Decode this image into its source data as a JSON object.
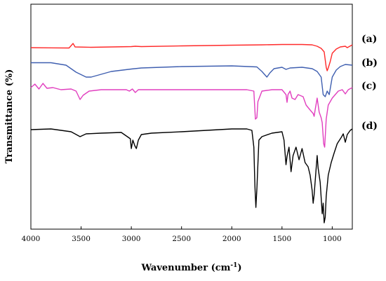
{
  "chart_data": {
    "type": "line",
    "title": "",
    "xlabel": "Wavenumber (cm",
    "xlabel_superscript": "-1",
    "xlabel_suffix": ")",
    "ylabel": "Transmittance (%)",
    "xlim": [
      4000,
      800
    ],
    "x_reversed": true,
    "x_ticks": [
      4000,
      3500,
      3000,
      2500,
      2000,
      1500,
      1000
    ],
    "y_ticks": "none",
    "grid": false,
    "legend": "right-side labels",
    "series": [
      {
        "name": "(a)",
        "color": "#ff2a2a",
        "points": [
          [
            4000,
            68
          ],
          [
            3800,
            68.3
          ],
          [
            3620,
            68.5
          ],
          [
            3580,
            62
          ],
          [
            3560,
            67
          ],
          [
            3400,
            67.5
          ],
          [
            3000,
            66.5
          ],
          [
            2960,
            66
          ],
          [
            2900,
            66.5
          ],
          [
            2500,
            65.5
          ],
          [
            2000,
            64.5
          ],
          [
            1700,
            64
          ],
          [
            1500,
            63.5
          ],
          [
            1300,
            63.5
          ],
          [
            1200,
            64
          ],
          [
            1150,
            66
          ],
          [
            1110,
            69
          ],
          [
            1080,
            74
          ],
          [
            1060,
            96
          ],
          [
            1050,
            101
          ],
          [
            1040,
            97
          ],
          [
            1020,
            88
          ],
          [
            1000,
            76
          ],
          [
            960,
            70
          ],
          [
            920,
            67
          ],
          [
            870,
            66
          ],
          [
            850,
            68
          ],
          [
            800,
            64
          ]
        ]
      },
      {
        "name": "(b)",
        "color": "#3f5fb0",
        "points": [
          [
            4000,
            89.5
          ],
          [
            3800,
            89.5
          ],
          [
            3650,
            93
          ],
          [
            3550,
            103
          ],
          [
            3450,
            110
          ],
          [
            3400,
            110
          ],
          [
            3300,
            106
          ],
          [
            3200,
            102
          ],
          [
            3000,
            98.5
          ],
          [
            2900,
            97
          ],
          [
            2500,
            95
          ],
          [
            2000,
            94
          ],
          [
            1750,
            95.5
          ],
          [
            1700,
            102
          ],
          [
            1650,
            110
          ],
          [
            1620,
            104
          ],
          [
            1580,
            98
          ],
          [
            1500,
            96
          ],
          [
            1460,
            99
          ],
          [
            1420,
            97
          ],
          [
            1300,
            96
          ],
          [
            1200,
            98
          ],
          [
            1150,
            102
          ],
          [
            1110,
            110
          ],
          [
            1090,
            135
          ],
          [
            1070,
            138
          ],
          [
            1050,
            130
          ],
          [
            1030,
            135
          ],
          [
            1000,
            110
          ],
          [
            960,
            100
          ],
          [
            920,
            95
          ],
          [
            870,
            92
          ],
          [
            800,
            93
          ]
        ]
      },
      {
        "name": "(c)",
        "color": "#e13fbf",
        "points": [
          [
            4000,
            125
          ],
          [
            3960,
            120
          ],
          [
            3920,
            127
          ],
          [
            3880,
            119
          ],
          [
            3840,
            126
          ],
          [
            3780,
            125
          ],
          [
            3700,
            128
          ],
          [
            3600,
            127
          ],
          [
            3550,
            130
          ],
          [
            3510,
            142
          ],
          [
            3480,
            136
          ],
          [
            3420,
            130
          ],
          [
            3300,
            128
          ],
          [
            3050,
            128
          ],
          [
            3020,
            130
          ],
          [
            2990,
            127
          ],
          [
            2960,
            132
          ],
          [
            2930,
            128
          ],
          [
            2800,
            128
          ],
          [
            2000,
            128
          ],
          [
            1850,
            128
          ],
          [
            1780,
            130
          ],
          [
            1765,
            170
          ],
          [
            1750,
            168
          ],
          [
            1740,
            145
          ],
          [
            1700,
            130
          ],
          [
            1600,
            128
          ],
          [
            1500,
            128
          ],
          [
            1460,
            135
          ],
          [
            1450,
            146
          ],
          [
            1440,
            135
          ],
          [
            1420,
            130
          ],
          [
            1400,
            140
          ],
          [
            1370,
            142
          ],
          [
            1340,
            135
          ],
          [
            1290,
            138
          ],
          [
            1260,
            150
          ],
          [
            1220,
            157
          ],
          [
            1190,
            162
          ],
          [
            1180,
            166
          ],
          [
            1170,
            157
          ],
          [
            1150,
            140
          ],
          [
            1130,
            160
          ],
          [
            1110,
            168
          ],
          [
            1100,
            175
          ],
          [
            1085,
            205
          ],
          [
            1075,
            210
          ],
          [
            1060,
            170
          ],
          [
            1040,
            150
          ],
          [
            1000,
            140
          ],
          [
            970,
            135
          ],
          [
            940,
            130
          ],
          [
            900,
            128
          ],
          [
            870,
            134
          ],
          [
            840,
            128
          ],
          [
            800,
            125
          ]
        ]
      },
      {
        "name": "(d)",
        "color": "#000000",
        "points": [
          [
            4000,
            185
          ],
          [
            3800,
            184
          ],
          [
            3600,
            188
          ],
          [
            3510,
            195
          ],
          [
            3450,
            191
          ],
          [
            3300,
            190
          ],
          [
            3100,
            189
          ],
          [
            3010,
            198
          ],
          [
            3000,
            212
          ],
          [
            2985,
            200
          ],
          [
            2965,
            208
          ],
          [
            2950,
            212
          ],
          [
            2930,
            200
          ],
          [
            2900,
            192
          ],
          [
            2800,
            190
          ],
          [
            2500,
            188
          ],
          [
            2000,
            184
          ],
          [
            1850,
            184
          ],
          [
            1800,
            186
          ],
          [
            1780,
            210
          ],
          [
            1770,
            265
          ],
          [
            1760,
            296
          ],
          [
            1750,
            270
          ],
          [
            1730,
            200
          ],
          [
            1700,
            195
          ],
          [
            1600,
            190
          ],
          [
            1500,
            188
          ],
          [
            1480,
            200
          ],
          [
            1460,
            235
          ],
          [
            1450,
            223
          ],
          [
            1430,
            210
          ],
          [
            1410,
            245
          ],
          [
            1390,
            222
          ],
          [
            1360,
            210
          ],
          [
            1330,
            228
          ],
          [
            1300,
            212
          ],
          [
            1270,
            232
          ],
          [
            1240,
            238
          ],
          [
            1220,
            250
          ],
          [
            1200,
            272
          ],
          [
            1190,
            290
          ],
          [
            1180,
            278
          ],
          [
            1160,
            240
          ],
          [
            1150,
            222
          ],
          [
            1140,
            240
          ],
          [
            1120,
            260
          ],
          [
            1100,
            305
          ],
          [
            1090,
            290
          ],
          [
            1080,
            318
          ],
          [
            1070,
            310
          ],
          [
            1060,
            280
          ],
          [
            1040,
            250
          ],
          [
            1010,
            232
          ],
          [
            980,
            218
          ],
          [
            950,
            205
          ],
          [
            910,
            196
          ],
          [
            890,
            191
          ],
          [
            870,
            203
          ],
          [
            850,
            192
          ],
          [
            820,
            186
          ],
          [
            800,
            184
          ]
        ]
      }
    ]
  }
}
